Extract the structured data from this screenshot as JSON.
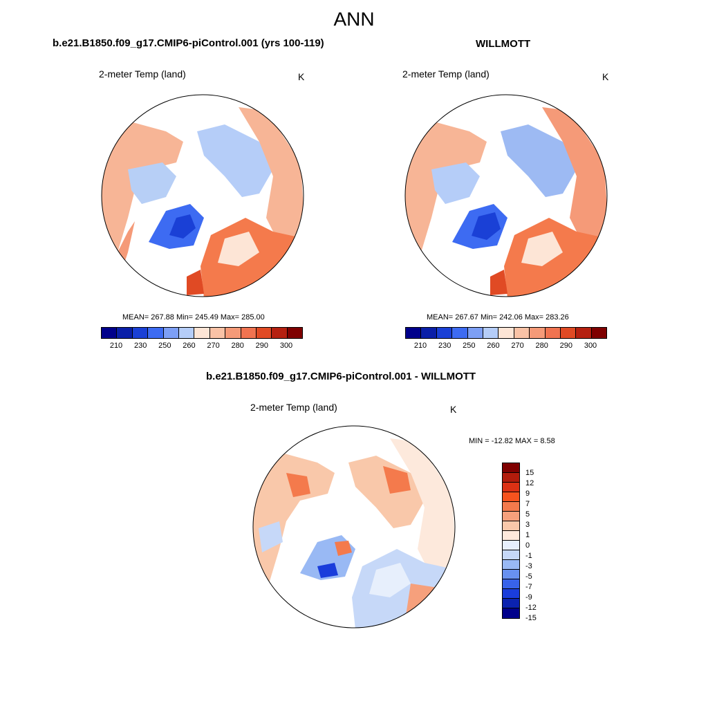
{
  "figure": {
    "title": "ANN"
  },
  "panels": [
    {
      "title": "b.e21.B1850.f09_g17.CMIP6-piControl.001 (yrs 100-119)",
      "variable": "2-meter Temp (land)",
      "units": "K",
      "stats": "MEAN= 267.88  Min= 245.49  Max= 285.00"
    },
    {
      "title": "WILLMOTT",
      "variable": "2-meter Temp (land)",
      "units": "K",
      "stats": "MEAN= 267.67  Min= 242.06  Max= 283.26"
    },
    {
      "title": "b.e21.B1850.f09_g17.CMIP6-piControl.001 - WILLMOTT",
      "variable": "2-meter Temp (land)",
      "units": "K",
      "stats": "MIN = -12.82 MAX =   8.58"
    }
  ],
  "colorbar_abs": {
    "colors": [
      "#00008b",
      "#0a1fa8",
      "#1a40d6",
      "#3d6bf2",
      "#7d9ff5",
      "#b5cdf8",
      "#fde5d6",
      "#f9c2a6",
      "#f59a78",
      "#f07350",
      "#e04a24",
      "#b52010",
      "#7f0000"
    ],
    "tick_labels": [
      "210",
      "230",
      "250",
      "260",
      "270",
      "280",
      "290",
      "300"
    ]
  },
  "colorbar_diff": {
    "colors": [
      "#7f0000",
      "#b21c0c",
      "#dc3114",
      "#f6531e",
      "#f47a4c",
      "#f6a07c",
      "#f9c8aa",
      "#fde9dc",
      "#e7effc",
      "#c6d8f8",
      "#99b9f4",
      "#6891f0",
      "#3863ea",
      "#1a3ddb",
      "#0b22b0",
      "#00008b"
    ],
    "tick_labels": [
      "15",
      "12",
      "9",
      "7",
      "5",
      "3",
      "1",
      "0",
      "-1",
      "-3",
      "-5",
      "-7",
      "-9",
      "-12",
      "-15"
    ]
  }
}
